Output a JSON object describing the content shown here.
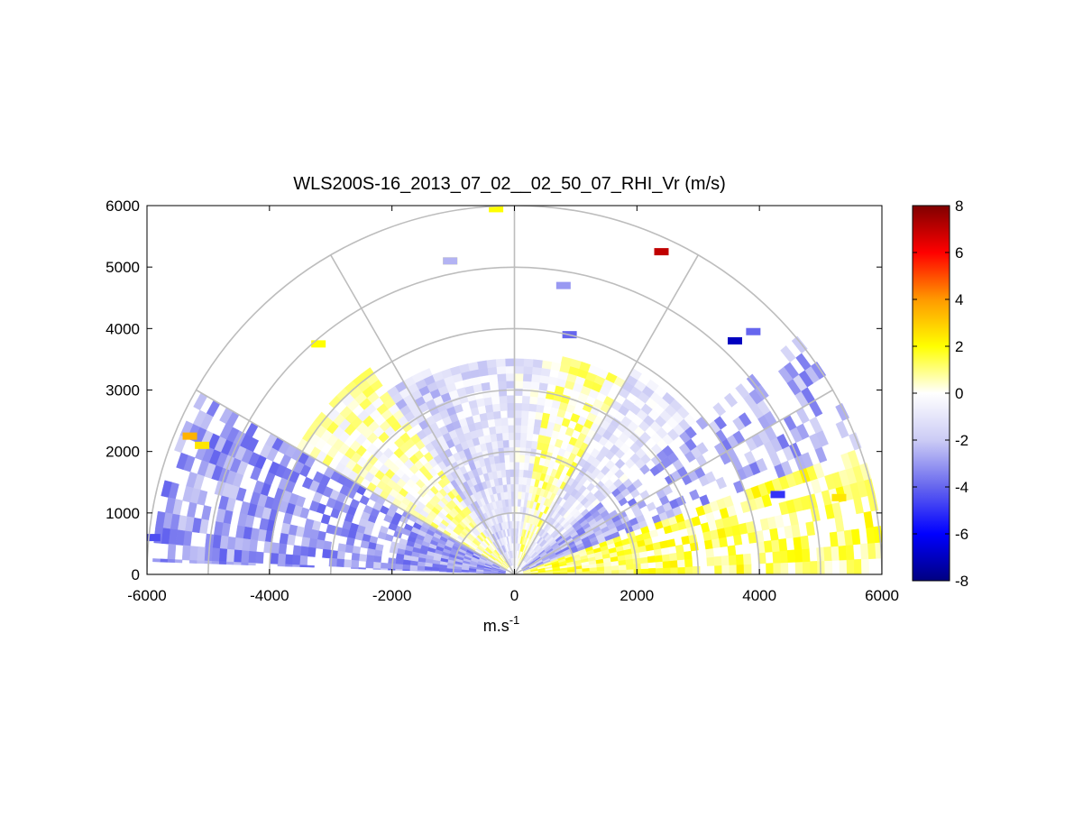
{
  "chart_data": {
    "type": "heatmap",
    "title": "WLS200S-16_2013_07_02__02_50_07_RHI_Vr (m/s)",
    "xlabel": "m.s-1",
    "xlabel_parts": {
      "base": "m.s",
      "sup": "-1"
    },
    "ylabel": "",
    "xlim": [
      -6000,
      6000
    ],
    "ylim": [
      0,
      6000
    ],
    "x_ticks": [
      "-6000",
      "-4000",
      "-2000",
      "0",
      "2000",
      "4000",
      "6000"
    ],
    "y_ticks": [
      "0",
      "1000",
      "2000",
      "3000",
      "4000",
      "5000",
      "6000"
    ],
    "x_tick_values": [
      -6000,
      -4000,
      -2000,
      0,
      2000,
      4000,
      6000
    ],
    "y_tick_values": [
      0,
      1000,
      2000,
      3000,
      4000,
      5000,
      6000
    ],
    "polar_grid": {
      "ring_radii": [
        1000,
        2000,
        3000,
        4000,
        5000,
        6000
      ],
      "spoke_angles_deg": [
        0,
        30,
        60,
        90,
        120,
        150,
        180
      ]
    },
    "colorbar": {
      "min": -8,
      "max": 8,
      "ticks": [
        "8",
        "6",
        "4",
        "2",
        "0",
        "-2",
        "-4",
        "-6",
        "-8"
      ],
      "tick_values": [
        8,
        6,
        4,
        2,
        0,
        -2,
        -4,
        -6,
        -8
      ],
      "colormap": [
        "#000080",
        "#0000ff",
        "#6666ee",
        "#ccccf5",
        "#ffffff",
        "#ffff00",
        "#ff9900",
        "#ff0000",
        "#800000"
      ]
    },
    "sectors": [
      {
        "az_start_deg": 0,
        "az_end_deg": 20,
        "r_max": 6000,
        "v_mean": 1.2,
        "coverage": 0.75
      },
      {
        "az_start_deg": 20,
        "az_end_deg": 40,
        "r_max": 6000,
        "v_mean": -2.6,
        "coverage": 0.45
      },
      {
        "az_start_deg": 40,
        "az_end_deg": 60,
        "r_max": 3800,
        "v_mean": -1.0,
        "coverage": 0.8
      },
      {
        "az_start_deg": 60,
        "az_end_deg": 80,
        "r_max": 3600,
        "v_mean": 0.6,
        "coverage": 0.8
      },
      {
        "az_start_deg": 80,
        "az_end_deg": 90,
        "r_max": 3500,
        "v_mean": -0.8,
        "coverage": 0.95
      },
      {
        "az_start_deg": 90,
        "az_end_deg": 110,
        "r_max": 3500,
        "v_mean": -1.1,
        "coverage": 0.95
      },
      {
        "az_start_deg": 110,
        "az_end_deg": 125,
        "r_max": 3600,
        "v_mean": -1.6,
        "coverage": 0.95
      },
      {
        "az_start_deg": 125,
        "az_end_deg": 150,
        "r_max": 4000,
        "v_mean": 0.3,
        "coverage": 0.85
      },
      {
        "az_start_deg": 150,
        "az_end_deg": 178,
        "r_max": 5900,
        "v_mean": -3.0,
        "coverage": 0.7
      }
    ],
    "isolated_cells": [
      {
        "x": -300,
        "y": 5950,
        "v": 2.0
      },
      {
        "x": 2400,
        "y": 5250,
        "v": 7.0
      },
      {
        "x": -5300,
        "y": 2250,
        "v": 3.5
      },
      {
        "x": -5100,
        "y": 2100,
        "v": 2.5
      },
      {
        "x": -3200,
        "y": 3750,
        "v": 2.0
      },
      {
        "x": -1050,
        "y": 5100,
        "v": 1.5
      },
      {
        "x": -1050,
        "y": 5100,
        "v": -2.5
      },
      {
        "x": 800,
        "y": 4700,
        "v": -3.0
      },
      {
        "x": 900,
        "y": 3900,
        "v": -4.0
      },
      {
        "x": 3600,
        "y": 3800,
        "v": -7.0
      },
      {
        "x": 3900,
        "y": 3950,
        "v": -4.0
      },
      {
        "x": 4300,
        "y": 1300,
        "v": -5.0
      },
      {
        "x": 5300,
        "y": 1250,
        "v": 2.5
      },
      {
        "x": -5900,
        "y": 600,
        "v": -4.5
      }
    ]
  }
}
